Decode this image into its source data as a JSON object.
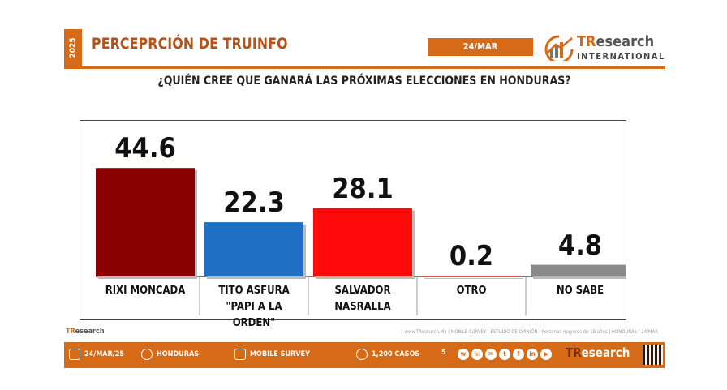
{
  "header": {
    "year_tab": "2025",
    "title": "PERCEPRCIÓN DE TRUINFO",
    "date": "24/MAR",
    "logo_main": "TResearch",
    "logo_sub": "INTERNATIONAL"
  },
  "question": "¿QUIÉN CREE QUE GANARÁ LAS PRÓXIMAS ELECCIONES EN HONDURAS?",
  "chart_data": {
    "type": "bar",
    "title": "¿QUIÉN CREE QUE GANARÁ LAS PRÓXIMAS ELECCIONES EN HONDURAS?",
    "categories": [
      "RIXI MONCADA",
      "TITO ASFURA \"PAPI A LA ORDEN\"",
      "SALVADOR NASRALLA",
      "OTRO",
      "NO SABE"
    ],
    "values": [
      44.6,
      22.3,
      28.1,
      0.2,
      4.8
    ],
    "value_labels": [
      "44.6",
      "22.3",
      "28.1",
      "0.2",
      "4.8"
    ],
    "colors": [
      "#8b0000",
      "#1f6fc5",
      "#ff0a0a",
      "#c0392b",
      "#8a8a8a"
    ],
    "xlabel": "",
    "ylabel": "",
    "ylim": [
      0,
      50
    ],
    "grid": false,
    "legend": "none"
  },
  "footer": {
    "small_logo": "TResearch",
    "source_text": "| www.TResearch.Mx | MOBILE SURVEY | ESTUDIO DE OPINIÓN | Personas mayores de 18 años | HONDURAS | 24/MAR",
    "date": "24/MAR/25",
    "country": "HONDURAS",
    "method": "MOBILE SURVEY",
    "cases": "1,200 CASOS",
    "page": "5",
    "socials": [
      "www-icon",
      "whatsapp-icon",
      "email-icon",
      "twitter-icon",
      "facebook-icon",
      "linkedin-icon",
      "youtube-icon"
    ]
  }
}
